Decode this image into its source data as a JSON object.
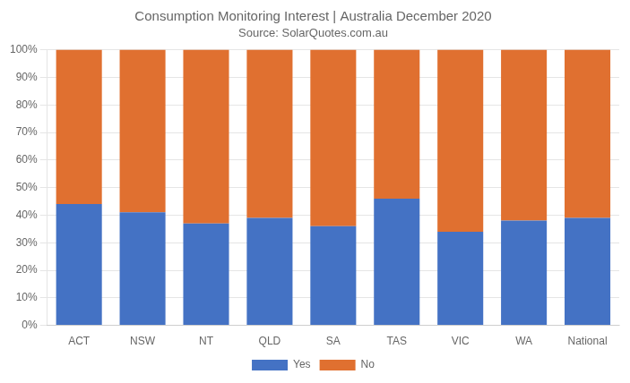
{
  "chart_data": {
    "type": "bar",
    "stacked": true,
    "title": "Consumption Monitoring Interest | Australia December 2020",
    "subtitle": "Source: SolarQuotes.com.au",
    "categories": [
      "ACT",
      "NSW",
      "NT",
      "QLD",
      "SA",
      "TAS",
      "VIC",
      "WA",
      "National"
    ],
    "series": [
      {
        "name": "Yes",
        "color": "#4472C4",
        "values": [
          44,
          41,
          37,
          39,
          36,
          46,
          34,
          38,
          39
        ]
      },
      {
        "name": "No",
        "color": "#E07030",
        "values": [
          56,
          59,
          63,
          61,
          64,
          54,
          66,
          62,
          61
        ]
      }
    ],
    "ylim": [
      0,
      100
    ],
    "yticks": [
      {
        "value": 0,
        "label": "0%"
      },
      {
        "value": 10,
        "label": "10%"
      },
      {
        "value": 20,
        "label": "20%"
      },
      {
        "value": 30,
        "label": "30%"
      },
      {
        "value": 40,
        "label": "40%"
      },
      {
        "value": 50,
        "label": "50%"
      },
      {
        "value": 60,
        "label": "60%"
      },
      {
        "value": 70,
        "label": "70%"
      },
      {
        "value": 80,
        "label": "80%"
      },
      {
        "value": 90,
        "label": "90%"
      },
      {
        "value": 100,
        "label": "100%"
      }
    ],
    "grid": true,
    "legend": "bottom"
  }
}
